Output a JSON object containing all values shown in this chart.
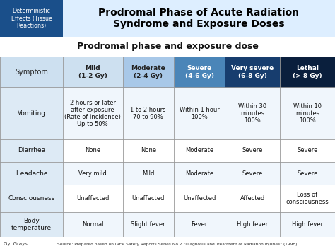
{
  "main_title": "Prodromal Phase of Acute Radiation\nSyndrome and Exposure Doses",
  "subtitle": "Prodromal phase and exposure dose",
  "corner_label": "Deterministic\nEffects (Tissue\nReactions)",
  "footer_left": "Gy: Grays",
  "footer_right": "Source: Prepared based on IAEA Safety Reports Series No.2 \"Diagnosis and Treatment of Radiation Injuries\" (1998)",
  "col_headers": [
    "Symptom",
    "Mild\n(1-2 Gy)",
    "Moderate\n(2-4 Gy)",
    "Severe\n(4-6 Gy)",
    "Very severe\n(6-8 Gy)",
    "Lethal\n(> 8 Gy)"
  ],
  "rows": [
    [
      "Vomiting",
      "2 hours or later\nafter exposure\n(Rate of incidence)\nUp to 50%",
      "1 to 2 hours\n70 to 90%",
      "Within 1 hour\n100%",
      "Within 30\nminutes\n100%",
      "Within 10\nminutes\n100%"
    ],
    [
      "Diarrhea",
      "None",
      "None",
      "Moderate",
      "Severe",
      "Severe"
    ],
    [
      "Headache",
      "Very mild",
      "Mild",
      "Moderate",
      "Severe",
      "Severe"
    ],
    [
      "Consciousness",
      "Unaffected",
      "Unaffected",
      "Unaffected",
      "Affected",
      "Loss of\nconsciousness"
    ],
    [
      "Body\ntemperature",
      "Normal",
      "Slight fever",
      "Fever",
      "High fever",
      "High fever"
    ]
  ],
  "top_banner_bg": "#ddeeff",
  "corner_box_color": "#1a4f8a",
  "corner_text_color": "#ffffff",
  "title_color": "#000000",
  "subtitle_color": "#111111",
  "header_colors": [
    "#cde0f0",
    "#a8c8e8",
    "#4a85b8",
    "#173d6e",
    "#0a1f3d"
  ],
  "header_text_colors": [
    "#222222",
    "#222222",
    "#ffffff",
    "#ffffff",
    "#ffffff"
  ],
  "symptom_col_color": "#ddeaf5",
  "row_bg_colors": [
    "#f0f6fc",
    "#ffffff",
    "#f0f6fc",
    "#ffffff",
    "#f0f6fc"
  ],
  "grid_color": "#999999",
  "footer_color": "#333333"
}
